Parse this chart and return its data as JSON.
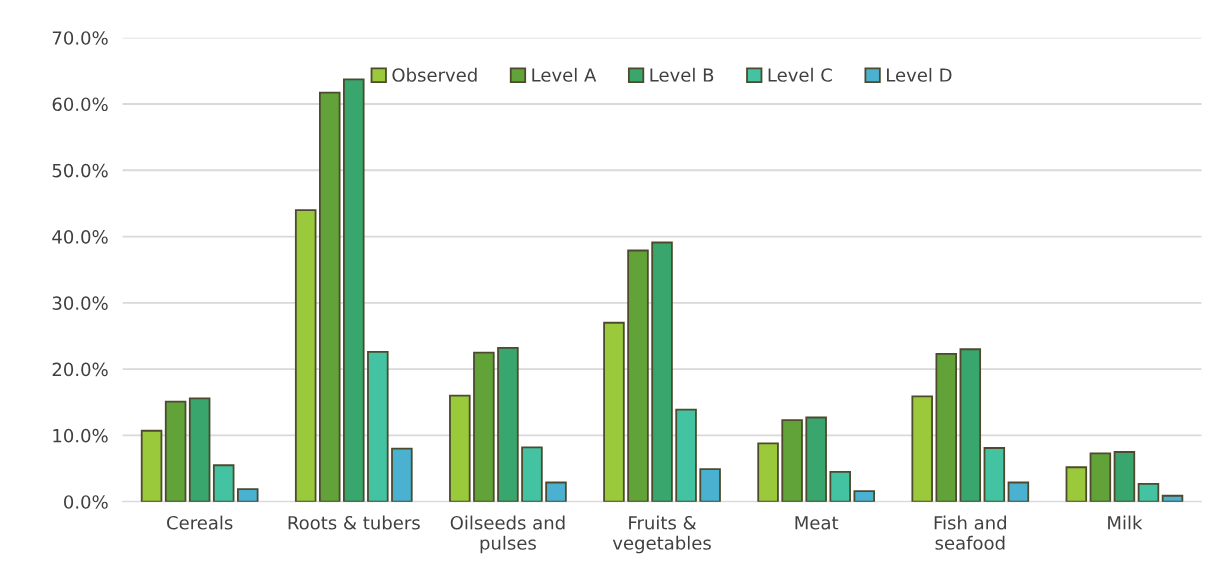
{
  "chart_data": {
    "type": "bar",
    "categories": [
      "Cereals",
      "Roots & tubers",
      "Oilseeds and\npulses",
      "Fruits &\nvegetables",
      "Meat",
      "Fish and\nseafood",
      "Milk"
    ],
    "series": [
      {
        "name": "Observed",
        "color": "#9aca3c",
        "values": [
          10.7,
          44.0,
          16.0,
          27.0,
          8.8,
          15.9,
          5.2
        ]
      },
      {
        "name": "Level A",
        "color": "#62a339",
        "values": [
          15.1,
          61.7,
          22.5,
          37.9,
          12.3,
          22.3,
          7.3
        ]
      },
      {
        "name": "Level B",
        "color": "#38a66d",
        "values": [
          15.6,
          63.7,
          23.2,
          39.1,
          12.7,
          23.0,
          7.5
        ]
      },
      {
        "name": "Level C",
        "color": "#44c3a2",
        "values": [
          5.5,
          22.6,
          8.2,
          13.9,
          4.5,
          8.1,
          2.7
        ]
      },
      {
        "name": "Level D",
        "color": "#4bb1d0",
        "values": [
          1.9,
          8.0,
          2.9,
          4.9,
          1.6,
          2.9,
          0.9
        ]
      }
    ],
    "ylim": [
      0,
      70
    ],
    "yticks": [
      {
        "value": 0,
        "label": "0.0%"
      },
      {
        "value": 10,
        "label": "10.0%"
      },
      {
        "value": 20,
        "label": "20.0%"
      },
      {
        "value": 30,
        "label": "30.0%"
      },
      {
        "value": 40,
        "label": "40.0%"
      },
      {
        "value": 50,
        "label": "50.0%"
      },
      {
        "value": 60,
        "label": "60.0%"
      },
      {
        "value": 70,
        "label": "70.0%"
      }
    ],
    "grid": "y",
    "legend": "top"
  }
}
